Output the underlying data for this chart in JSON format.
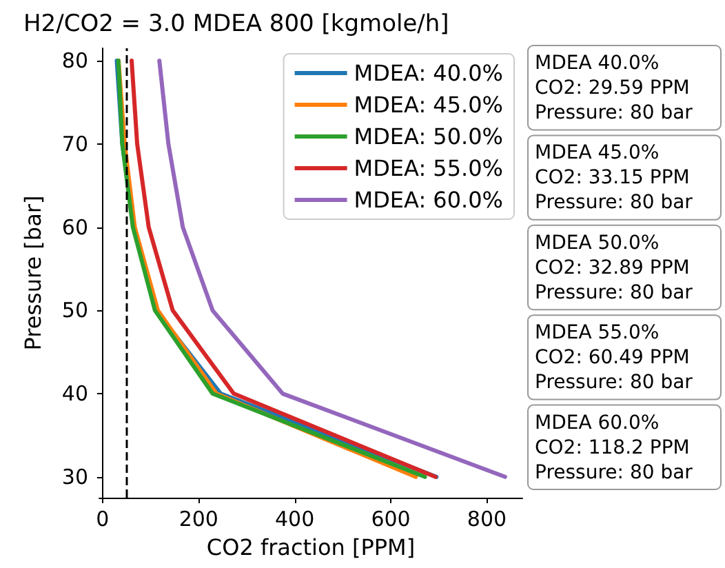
{
  "chart_data": {
    "type": "line",
    "title": "H2/CO2 = 3.0 MDEA 800 [kgmole/h]",
    "xlabel": "CO2 fraction [PPM]",
    "ylabel": "Pressure [bar]",
    "xlim": [
      -7,
      874
    ],
    "xticks": [
      0,
      200,
      400,
      600,
      800
    ],
    "ylim": [
      27.5,
      81.5
    ],
    "yticks": [
      30,
      40,
      50,
      60,
      70,
      80
    ],
    "grid": false,
    "legend": "top right",
    "marker": "none",
    "line_style": "solid",
    "series": [
      {
        "name": "MDEA: 40.0%",
        "color": "#1f77b4",
        "x": [
          695,
          246,
          111,
          65,
          41,
          29.59
        ],
        "values": [
          30,
          40,
          50,
          60,
          70,
          80
        ]
      },
      {
        "name": "MDEA: 45.0%",
        "color": "#ff7f0e",
        "x": [
          652,
          237,
          115,
          67,
          46,
          33.15
        ],
        "values": [
          30,
          40,
          50,
          60,
          70,
          80
        ]
      },
      {
        "name": "MDEA: 50.0%",
        "color": "#2ca02c",
        "x": [
          671,
          229,
          109,
          63,
          41,
          32.89
        ],
        "values": [
          30,
          40,
          50,
          60,
          70,
          80
        ]
      },
      {
        "name": "MDEA: 55.0%",
        "color": "#d62728",
        "x": [
          693,
          273,
          146,
          96,
          72,
          60.49
        ],
        "values": [
          30,
          40,
          50,
          60,
          70,
          80
        ]
      },
      {
        "name": "MDEA: 60.0%",
        "color": "#9467bd",
        "x": [
          838,
          375,
          229,
          167,
          137,
          118.2
        ],
        "values": [
          30,
          40,
          50,
          60,
          70,
          80
        ]
      }
    ],
    "ref_lines": [
      {
        "axis": "x",
        "value": 50,
        "color": "#000000",
        "line_style": "dashed"
      }
    ],
    "annotations": [
      "MDEA 40.0%\nCO2: 29.59 PPM\nPressure: 80 bar",
      "MDEA 45.0%\nCO2: 33.15 PPM\nPressure: 80 bar",
      "MDEA 50.0%\nCO2: 32.89 PPM\nPressure: 80 bar",
      "MDEA 55.0%\nCO2: 60.49 PPM\nPressure: 80 bar",
      "MDEA 60.0%\nCO2: 118.2 PPM\nPressure: 80 bar"
    ]
  }
}
